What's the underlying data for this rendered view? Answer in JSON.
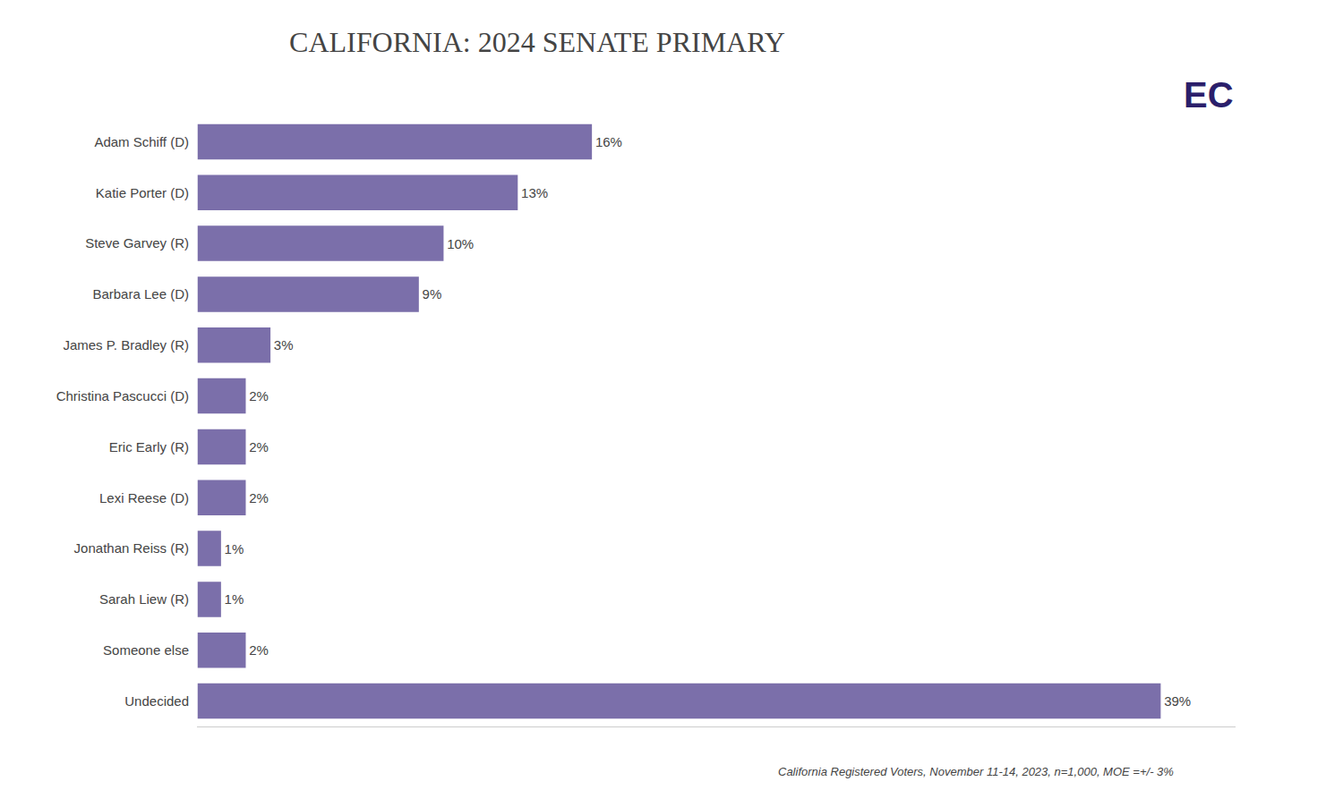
{
  "chart_data": {
    "type": "bar",
    "orientation": "horizontal",
    "title": "CALIFORNIA: 2024 SENATE PRIMARY",
    "categories": [
      "Undecided",
      "Someone else",
      "Sarah Liew (R)",
      "Jonathan Reiss (R)",
      "Lexi Reese (D)",
      "Eric Early (R)",
      "Christina Pascucci (D)",
      "James P. Bradley (R)",
      "Barbara Lee (D)",
      "Steve Garvey (R)",
      "Katie Porter (D)",
      "Adam Schiff (D)"
    ],
    "values": [
      39,
      2,
      1,
      1,
      2,
      2,
      2,
      3,
      9,
      10,
      13,
      16
    ],
    "value_labels": [
      "39%",
      "2%",
      "1%",
      "1%",
      "2%",
      "2%",
      "2%",
      "3%",
      "9%",
      "10%",
      "13%",
      "16%"
    ],
    "data_labels": true,
    "color": "#7b6faa",
    "xlim": [
      0,
      42
    ],
    "grid": false,
    "tick_labels": "y",
    "annotations": [
      {
        "text": "California Registered Voters, November 11-14, 2023, n=1,000, MOE =+/- 3%"
      },
      {
        "text": "EC",
        "color": "#2b1f6b"
      }
    ]
  }
}
